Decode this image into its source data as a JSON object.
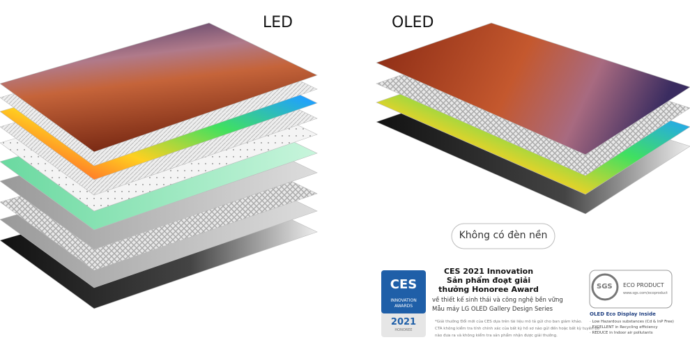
{
  "headings": {
    "led": "LED",
    "oled": "OLED"
  },
  "button": "Không có đèn nền",
  "award": {
    "badge": {
      "logo": "CES",
      "line1": "INNOVATION",
      "line2": "AWARDS",
      "year": "2021",
      "tier": "HONOREE"
    },
    "title_lines": [
      "CES 2021 Innovation",
      "Sản phẩm đoạt giải",
      "thưởng Honoree Award"
    ],
    "sub_lines": [
      "về thiết kế sinh thái và công nghệ bền vững",
      "Mẫu máy LG OLED Gallery Design Series"
    ],
    "footnote_lines": [
      "*Giải thưởng Đổi mới của CES dựa trên tài liệu mô tả gửi cho ban giám khảo.",
      "CTA không kiểm tra tính chính xác của bất kỳ hồ sơ nào gửi đến hoặc bất kỳ tuyên bố",
      "nào đưa ra và không kiểm tra sản phẩm nhận được giải thưởng."
    ]
  },
  "eco": {
    "logo": "SGS",
    "label": "ECO PRODUCT",
    "url": "www.sgs.com/ecoproduct",
    "title": "OLED Eco Display Inside",
    "points": [
      "· Low Hazardous substances (Cd & InP Free)",
      "· EXCELLENT in Recycling efficiency",
      "· REDUCE in Indoor air pollutants"
    ]
  }
}
